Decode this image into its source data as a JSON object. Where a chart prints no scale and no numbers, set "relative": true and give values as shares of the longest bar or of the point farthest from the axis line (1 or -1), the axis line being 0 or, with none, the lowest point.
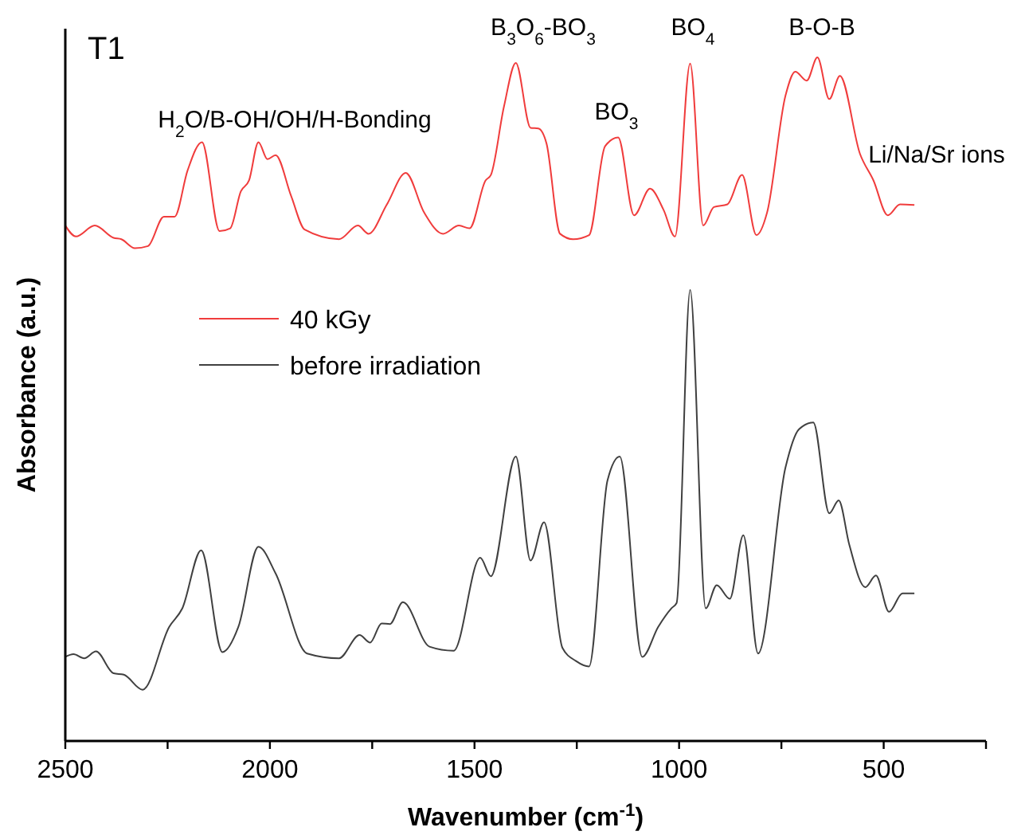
{
  "chart_data": {
    "type": "line",
    "title": "T1",
    "xlabel": "Wavenumber (cm$^{-1}$)",
    "ylabel": "Absorbance (a.u.)",
    "relative": true,
    "xlim": [
      2500,
      250
    ],
    "xticks": [
      2500,
      {
        "value": 2250,
        "label": null
      },
      2000,
      {
        "value": 1750,
        "label": null
      },
      1500,
      {
        "value": 1250,
        "label": null
      },
      1000,
      {
        "value": 750,
        "label": null
      },
      500,
      {
        "value": 250,
        "label": null
      }
    ],
    "tick_labels": "x",
    "grid": false,
    "legend": "left",
    "marker": "none",
    "line_style": "solid",
    "series": [
      {
        "name": "40 kGy",
        "color": "#f03c3c",
        "x": [
          2500,
          2474,
          2428,
          2382,
          2363,
          2330,
          2298,
          2259,
          2233,
          2201,
          2166,
          2123,
          2097,
          2071,
          2051,
          2028,
          2006,
          1986,
          1948,
          1915,
          1831,
          1785,
          1759,
          1714,
          1668,
          1623,
          1577,
          1538,
          1512,
          1473,
          1460,
          1428,
          1399,
          1363,
          1344,
          1324,
          1291,
          1259,
          1220,
          1181,
          1149,
          1110,
          1071,
          1038,
          1010,
          973,
          941,
          915,
          882,
          846,
          811,
          785,
          740,
          716,
          688,
          662,
          633,
          607,
          558,
          525,
          490,
          460,
          425
        ],
        "values": [
          0.754,
          0.738,
          0.754,
          0.736,
          0.734,
          0.721,
          0.724,
          0.767,
          0.767,
          0.835,
          0.876,
          0.746,
          0.75,
          0.804,
          0.82,
          0.876,
          0.851,
          0.857,
          0.797,
          0.748,
          0.734,
          0.754,
          0.742,
          0.785,
          0.831,
          0.773,
          0.742,
          0.754,
          0.75,
          0.82,
          0.828,
          0.928,
          0.992,
          0.897,
          0.896,
          0.874,
          0.742,
          0.734,
          0.74,
          0.87,
          0.883,
          0.769,
          0.808,
          0.777,
          0.738,
          0.991,
          0.754,
          0.781,
          0.785,
          0.828,
          0.74,
          0.773,
          0.944,
          0.979,
          0.966,
          1.0,
          0.939,
          0.973,
          0.859,
          0.82,
          0.769,
          0.785,
          0.784
        ]
      },
      {
        "name": "before irradiation",
        "color": "#404040",
        "x": [
          2500,
          2480,
          2454,
          2425,
          2382,
          2357,
          2311,
          2246,
          2214,
          2168,
          2116,
          2077,
          2028,
          1986,
          1909,
          1831,
          1781,
          1755,
          1727,
          1707,
          1675,
          1610,
          1551,
          1486,
          1460,
          1399,
          1363,
          1330,
          1285,
          1252,
          1220,
          1175,
          1145,
          1090,
          1051,
          1019,
          1006,
          973,
          935,
          908,
          876,
          843,
          807,
          740,
          707,
          672,
          633,
          610,
          584,
          545,
          519,
          487,
          454,
          425
        ],
        "values": [
          0.123,
          0.127,
          0.121,
          0.131,
          0.099,
          0.097,
          0.075,
          0.167,
          0.194,
          0.279,
          0.13,
          0.167,
          0.284,
          0.245,
          0.128,
          0.121,
          0.155,
          0.144,
          0.172,
          0.171,
          0.203,
          0.138,
          0.132,
          0.268,
          0.241,
          0.416,
          0.264,
          0.32,
          0.136,
          0.117,
          0.109,
          0.381,
          0.416,
          0.123,
          0.167,
          0.194,
          0.202,
          0.66,
          0.194,
          0.228,
          0.208,
          0.301,
          0.128,
          0.4,
          0.456,
          0.466,
          0.333,
          0.352,
          0.287,
          0.225,
          0.242,
          0.189,
          0.216,
          0.216
        ]
      }
    ],
    "annotations": [
      "H$_{2}$O/B-OH/OH/H-Bonding",
      "B$_{3}$O$_{6}$-BO$_{3}$",
      "BO$_{3}$",
      "BO$_{4}$",
      "B-O-B",
      "Li/Na/Sr ions"
    ]
  }
}
